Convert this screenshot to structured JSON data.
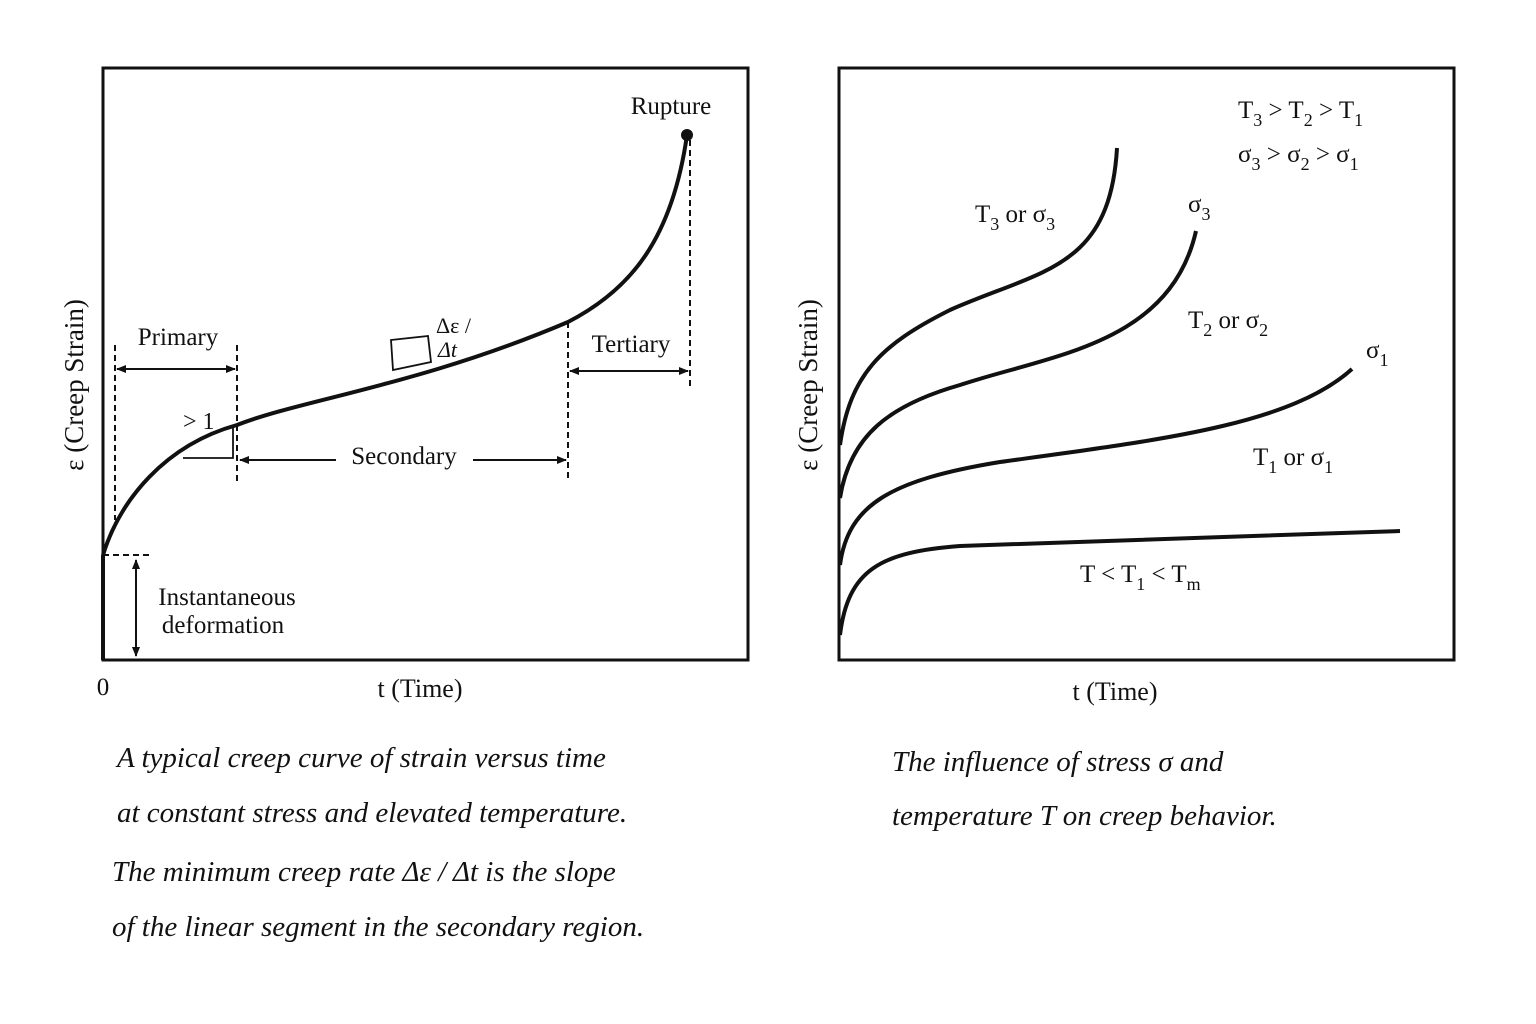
{
  "left_diagram": {
    "y_axis_label": "ε (Creep Strain)",
    "x_axis_label": "t (Time)",
    "origin_label": "0",
    "rupture_label": "Rupture",
    "primary_label": "Primary",
    "secondary_label": "Secondary",
    "tertiary_label": "Tertiary",
    "slope_label_top": "Δε /",
    "slope_label_bottom": "Δt",
    "primary_slope_label": "> 1",
    "instantaneous_line1": "Instantaneous",
    "instantaneous_line2": "deformation",
    "caption": [
      "A typical creep curve of strain versus time",
      "at constant stress and elevated temperature.",
      "The minimum creep rate Δε / Δt is the slope",
      "of the linear segment in the secondary region."
    ]
  },
  "right_diagram": {
    "y_axis_label": "ε (Creep Strain)",
    "x_axis_label": "t (Time)",
    "legend_line1": {
      "T": "T",
      "s3": "3",
      "gt1": " > T",
      "s2": "2",
      "gt2": " > T",
      "s1": "1"
    },
    "legend_line2": {
      "T": "σ",
      "s3": "3",
      "gt1": " > σ",
      "s2": "2",
      "gt2": " > σ",
      "s1": "1"
    },
    "curve_labels": {
      "c4": {
        "a": "T",
        "as": "3",
        "b": " or σ",
        "bs": "3"
      },
      "c3_end": {
        "a": "σ",
        "as": "3"
      },
      "c3": {
        "a": "T",
        "as": "2",
        "b": " or σ",
        "bs": "2"
      },
      "c2_end": {
        "a": "σ",
        "as": "1"
      },
      "c2": {
        "a": "T",
        "as": "1",
        "b": " or σ",
        "bs": "1"
      },
      "c1": {
        "a": "T < T",
        "as": "1",
        "b": " < T",
        "bs": "m"
      }
    },
    "caption": [
      "The influence of stress σ and",
      "temperature T on creep behavior."
    ]
  }
}
